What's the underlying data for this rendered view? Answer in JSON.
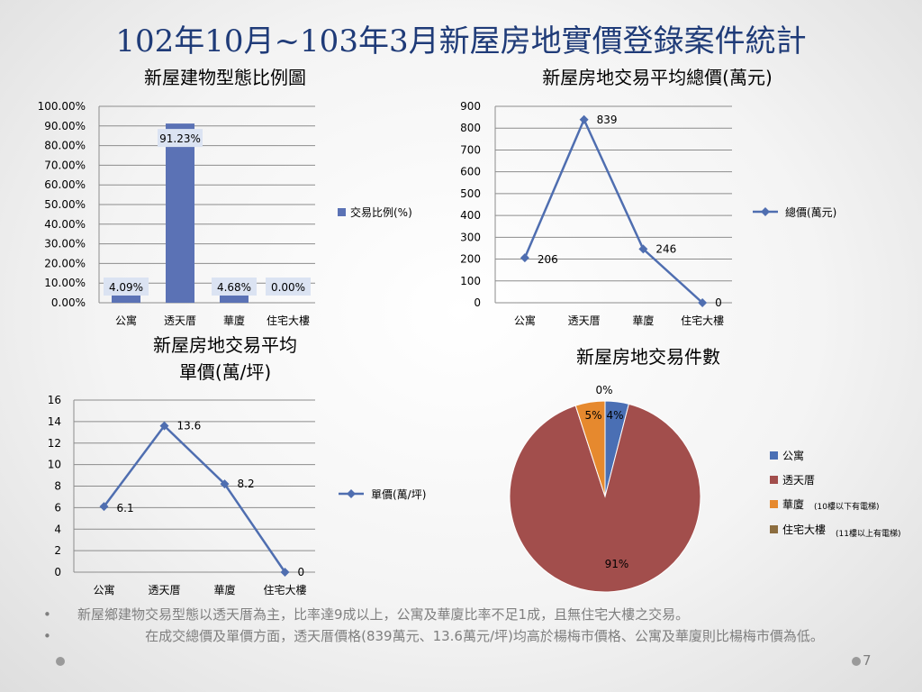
{
  "page": {
    "title": "102年10月~103年3月新屋房地實價登錄案件統計",
    "page_number": "7",
    "bullets": [
      "新屋鄉建物交易型態以透天厝為主，比率達9成以上，公寓及華廈比率不足1成，且無住宅大樓之交易。",
      "在成交總價及單價方面，透天厝價格(839萬元、13.6萬元/坪)均高於楊梅市價格、公寓及華廈則比楊梅市價為低。"
    ]
  },
  "colors": {
    "bar": "#5b72b5",
    "line": "#4f6eb0",
    "pie": [
      "#4a6fb4",
      "#a24e4c",
      "#e6892e",
      "#8c6d3f"
    ]
  },
  "chart_data": [
    {
      "type": "bar",
      "title": "新屋建物型態比例圖",
      "categories": [
        "公寓",
        "透天厝",
        "華廈",
        "住宅大樓"
      ],
      "series": [
        {
          "name": "交易比例(%)",
          "values": [
            4.09,
            91.23,
            4.68,
            0.0
          ],
          "labels": [
            "4.09%",
            "91.23%",
            "4.68%",
            "0.00%"
          ]
        }
      ],
      "ylim": [
        0,
        100
      ],
      "yticks": [
        "0.00%",
        "10.00%",
        "20.00%",
        "30.00%",
        "40.00%",
        "50.00%",
        "60.00%",
        "70.00%",
        "80.00%",
        "90.00%",
        "100.00%"
      ],
      "grid": true,
      "legend": "right"
    },
    {
      "type": "line",
      "title": "新屋房地交易平均總價(萬元)",
      "categories": [
        "公寓",
        "透天厝",
        "華廈",
        "住宅大樓"
      ],
      "series": [
        {
          "name": "總價(萬元)",
          "values": [
            206,
            839,
            246,
            0
          ],
          "labels": [
            "206",
            "839",
            "246",
            "0"
          ]
        }
      ],
      "ylim": [
        0,
        900
      ],
      "yticks": [
        "0",
        "100",
        "200",
        "300",
        "400",
        "500",
        "600",
        "700",
        "800",
        "900"
      ],
      "grid": true,
      "legend": "right"
    },
    {
      "type": "line",
      "title_lines": [
        "新屋房地交易平均",
        "單價(萬/坪)"
      ],
      "categories": [
        "公寓",
        "透天厝",
        "華廈",
        "住宅大樓"
      ],
      "series": [
        {
          "name": "單價(萬/坪)",
          "values": [
            6.1,
            13.6,
            8.2,
            0
          ],
          "labels": [
            "6.1",
            "13.6",
            "8.2",
            "0"
          ]
        }
      ],
      "ylim": [
        0,
        16
      ],
      "yticks": [
        "0",
        "2",
        "4",
        "6",
        "8",
        "10",
        "12",
        "14",
        "16"
      ],
      "grid": true,
      "legend": "right"
    },
    {
      "type": "pie",
      "title": "新屋房地交易件數",
      "categories": [
        "公寓",
        "透天厝",
        "華廈",
        "住宅大樓"
      ],
      "values": [
        4,
        91,
        5,
        0
      ],
      "labels": [
        "4%",
        "91%",
        "5%",
        "0%"
      ],
      "legend_notes": [
        "",
        "",
        "(10樓以下有電梯)",
        "(11樓以上有電梯)"
      ],
      "legend": "right"
    }
  ]
}
